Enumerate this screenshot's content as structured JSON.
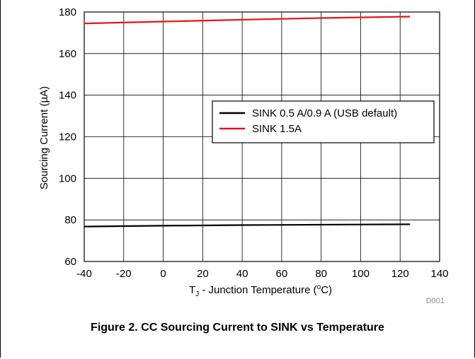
{
  "chart_data": {
    "type": "line",
    "ylabel_prefix": "Sourcing Current (",
    "ylabel_unit": "µ",
    "ylabel_suffix": "A)",
    "xlabel_main": "T",
    "xlabel_sub": "J",
    "xlabel_rest": " - Junction Temperature (",
    "xlabel_deg": "o",
    "xlabel_end": "C)",
    "xlim": [
      -40,
      140
    ],
    "ylim": [
      60,
      180
    ],
    "xticks": [
      -40,
      -20,
      0,
      20,
      40,
      60,
      80,
      100,
      120,
      140
    ],
    "yticks": [
      60,
      80,
      100,
      120,
      140,
      160,
      180
    ],
    "grid": true,
    "legend_position": "upper-right inside plot",
    "series": [
      {
        "name": "SINK 0.5 A/0.9 A (USB default)",
        "color": "#000000",
        "x": [
          -40,
          0,
          40,
          80,
          125
        ],
        "y": [
          76.8,
          77.2,
          77.5,
          77.7,
          77.9
        ]
      },
      {
        "name": "SINK 1.5A",
        "color": "#e8141b",
        "x": [
          -40,
          0,
          40,
          80,
          125
        ],
        "y": [
          174.5,
          175.4,
          176.3,
          177.1,
          177.8
        ]
      }
    ],
    "code_label": "D001"
  },
  "caption": "Figure 2. CC Sourcing Current to SINK vs Temperature"
}
